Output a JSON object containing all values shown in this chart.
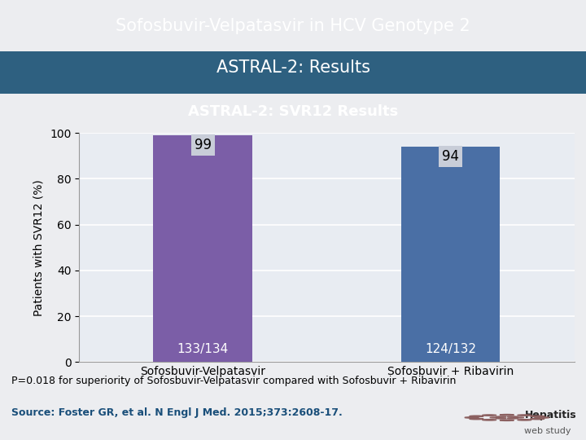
{
  "title_line1": "Sofosbuvir-Velpatasvir in HCV Genotype 2",
  "title_line2": "ASTRAL-2: Results",
  "subtitle": "ASTRAL-2: SVR12 Results",
  "categories": [
    "Sofosbuvir-Velpatasvir",
    "Sofosbuvir + Ribavirin"
  ],
  "values": [
    99,
    94
  ],
  "bar_colors": [
    "#7B5EA7",
    "#4A6FA5"
  ],
  "bottom_labels": [
    "133/134",
    "124/132"
  ],
  "top_labels": [
    "99",
    "94"
  ],
  "ylabel": "Patients with SVR12 (%)",
  "ylim": [
    0,
    100
  ],
  "yticks": [
    0,
    20,
    40,
    60,
    80,
    100
  ],
  "footnote": "P=0.018 for superiority of Sofosbuvir-Velpatasvir compared with Sofosbuvir + Ribavirin",
  "source": "Source: Foster GR, et al. N Engl J Med. 2015;373:2608-17.",
  "title_bg_top": "#1A3F5C",
  "title_bg_bottom": "#2E6080",
  "subtitle_bg_color": "#596673",
  "chart_bg_color": "#E8ECF2",
  "outer_bg_color": "#ECEDF0",
  "footnote_bg_color": "#E0E2E6",
  "title_text_color": "#FFFFFF",
  "subtitle_text_color": "#FFFFFF",
  "top_label_bg": "#C8CDD8",
  "bottom_label_color": "#FFFFFF",
  "separator_color": "#9B3030",
  "bar_label_fontsize": 11,
  "axis_fontsize": 10,
  "subtitle_fontsize": 13,
  "footnote_fontsize": 9,
  "source_fontsize": 9,
  "title_fontsize": 15
}
